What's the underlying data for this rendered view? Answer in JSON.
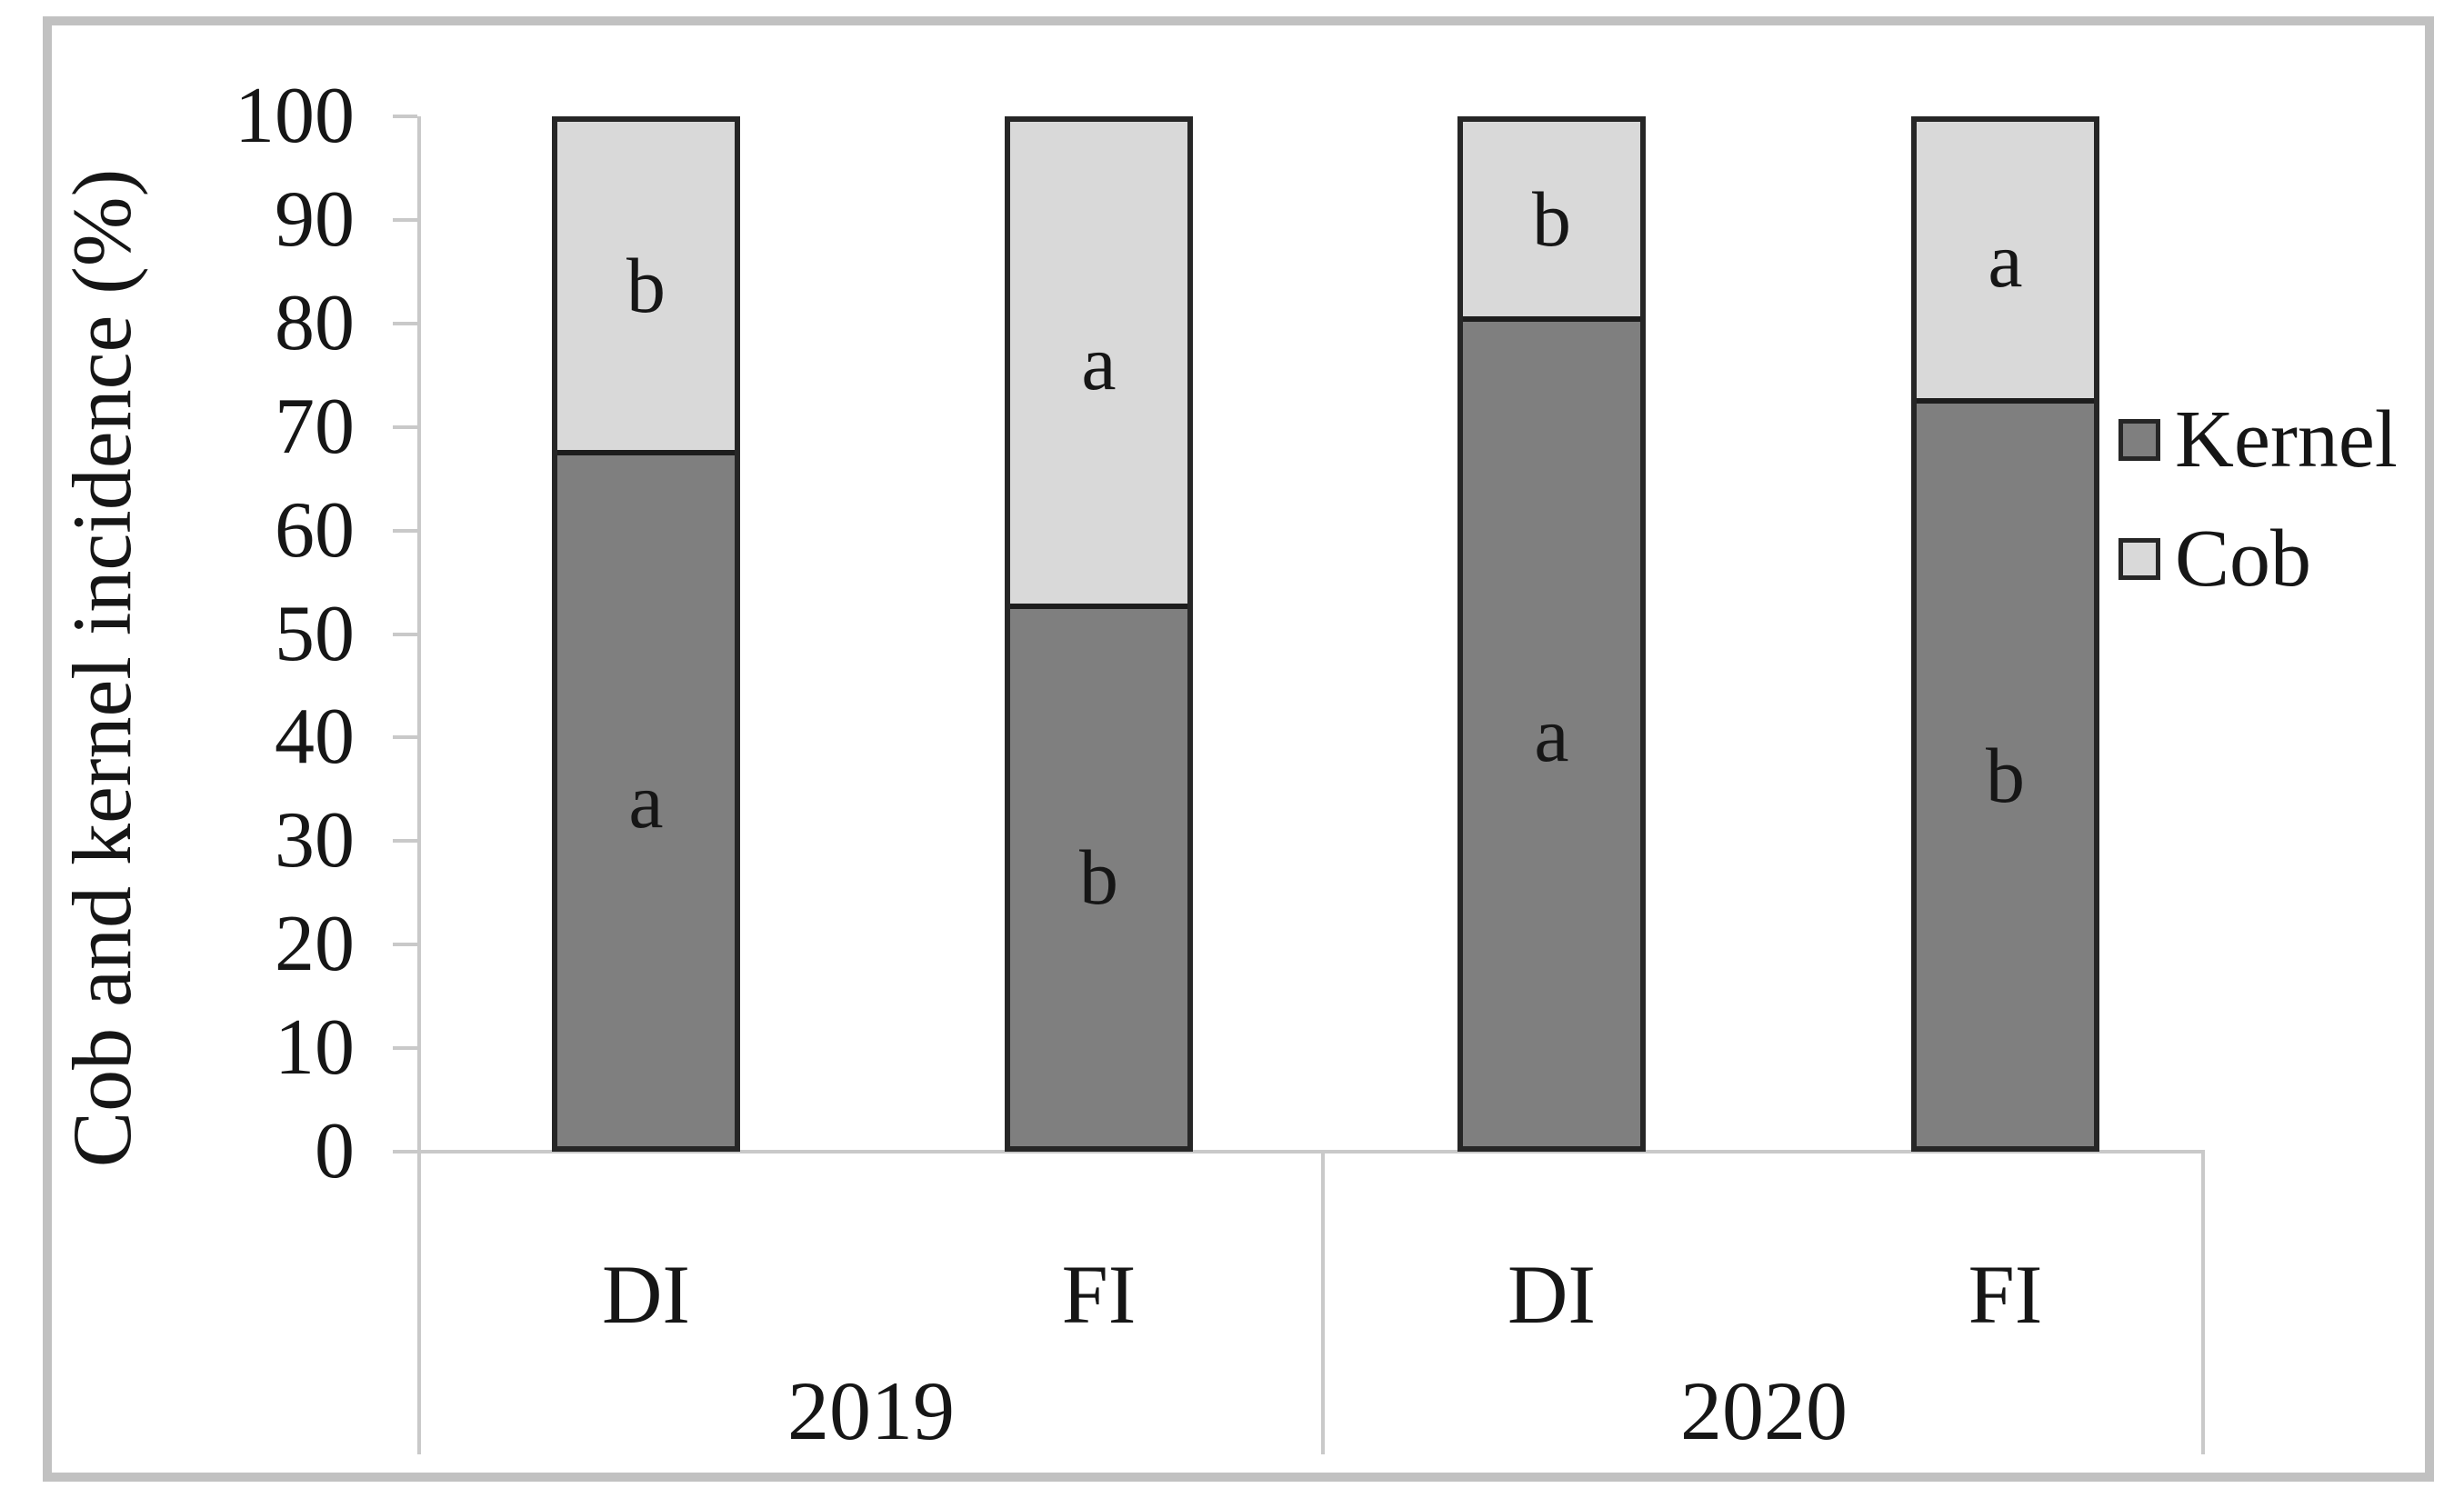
{
  "figure": {
    "y_axis": {
      "title": "Cob and kernel incidence (%)",
      "ticks": [
        100,
        90,
        80,
        70,
        60,
        50,
        40,
        30,
        20,
        10,
        0
      ]
    },
    "x_axis": {
      "treatment_labels": [
        "DI",
        "FI",
        "DI",
        "FI"
      ],
      "group_labels": [
        "2019",
        "2020"
      ]
    }
  },
  "chart_data": {
    "type": "bar",
    "stacked": true,
    "title": "",
    "xlabel": "",
    "ylabel": "Cob and kernel incidence (%)",
    "ylim": [
      0,
      100
    ],
    "grid": false,
    "legend_position": "right",
    "categories": [
      "DI 2019",
      "FI 2019",
      "DI 2020",
      "FI 2020"
    ],
    "series": [
      {
        "name": "Kernel",
        "color": "#7f7f7f",
        "values": [
          68,
          53,
          81,
          73
        ]
      },
      {
        "name": "Cob",
        "color": "#d9d9d9",
        "values": [
          32,
          47,
          19,
          27
        ]
      }
    ],
    "significance_letters": {
      "Kernel": [
        "a",
        "b",
        "a",
        "b"
      ],
      "Cob": [
        "b",
        "a",
        "b",
        "a"
      ]
    }
  },
  "legend": {
    "items": [
      {
        "label": "Kernel",
        "color": "#7f7f7f"
      },
      {
        "label": "Cob",
        "color": "#d9d9d9"
      }
    ]
  }
}
